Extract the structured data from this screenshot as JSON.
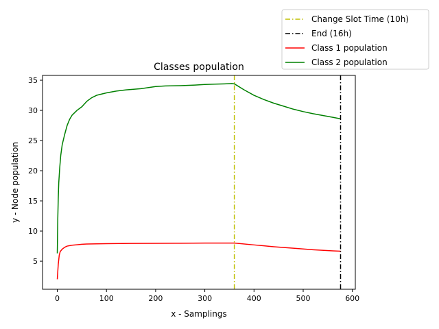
{
  "chart_data": {
    "type": "line",
    "title": "Classes population",
    "xlabel": "x - Samplings",
    "ylabel": "y - Node population",
    "xlim": [
      -30,
      606
    ],
    "ylim": [
      0.35,
      35.8
    ],
    "xticks": [
      0,
      100,
      200,
      300,
      400,
      500,
      600
    ],
    "yticks": [
      5,
      10,
      15,
      20,
      25,
      30,
      35
    ],
    "grid": false,
    "legend_position": "upper right, outside plot area",
    "vlines": [
      {
        "name": "Change Slot Time (10h)",
        "x": 360,
        "color": "#bfbf00",
        "style": "dashdot"
      },
      {
        "name": "End (16h)",
        "x": 576,
        "color": "#000000",
        "style": "dashdot"
      }
    ],
    "series": [
      {
        "name": "Class 1 population",
        "color": "#ff0000",
        "points": [
          [
            0,
            2.0
          ],
          [
            2,
            4.5
          ],
          [
            4,
            6.0
          ],
          [
            6,
            6.6
          ],
          [
            10,
            7.0
          ],
          [
            15,
            7.3
          ],
          [
            20,
            7.5
          ],
          [
            30,
            7.65
          ],
          [
            40,
            7.72
          ],
          [
            50,
            7.8
          ],
          [
            60,
            7.85
          ],
          [
            80,
            7.88
          ],
          [
            100,
            7.9
          ],
          [
            150,
            7.95
          ],
          [
            200,
            7.97
          ],
          [
            250,
            7.98
          ],
          [
            300,
            8.0
          ],
          [
            340,
            8.0
          ],
          [
            360,
            8.0
          ],
          [
            400,
            7.7
          ],
          [
            440,
            7.4
          ],
          [
            480,
            7.15
          ],
          [
            520,
            6.9
          ],
          [
            560,
            6.72
          ],
          [
            576,
            6.65
          ]
        ]
      },
      {
        "name": "Class 2 population",
        "color": "#008000",
        "points": [
          [
            0,
            6.3
          ],
          [
            1,
            12.0
          ],
          [
            2,
            15.5
          ],
          [
            3,
            18.0
          ],
          [
            5,
            20.5
          ],
          [
            7,
            22.5
          ],
          [
            10,
            24.3
          ],
          [
            15,
            26.0
          ],
          [
            20,
            27.5
          ],
          [
            25,
            28.5
          ],
          [
            30,
            29.2
          ],
          [
            40,
            30.0
          ],
          [
            50,
            30.6
          ],
          [
            60,
            31.5
          ],
          [
            70,
            32.1
          ],
          [
            80,
            32.5
          ],
          [
            100,
            32.9
          ],
          [
            120,
            33.2
          ],
          [
            140,
            33.4
          ],
          [
            170,
            33.6
          ],
          [
            200,
            33.95
          ],
          [
            220,
            34.05
          ],
          [
            250,
            34.1
          ],
          [
            280,
            34.2
          ],
          [
            300,
            34.3
          ],
          [
            320,
            34.35
          ],
          [
            340,
            34.4
          ],
          [
            355,
            34.45
          ],
          [
            360,
            34.4
          ],
          [
            380,
            33.4
          ],
          [
            400,
            32.5
          ],
          [
            420,
            31.8
          ],
          [
            440,
            31.2
          ],
          [
            460,
            30.7
          ],
          [
            480,
            30.2
          ],
          [
            500,
            29.8
          ],
          [
            520,
            29.45
          ],
          [
            540,
            29.15
          ],
          [
            560,
            28.85
          ],
          [
            576,
            28.6
          ]
        ]
      }
    ]
  }
}
